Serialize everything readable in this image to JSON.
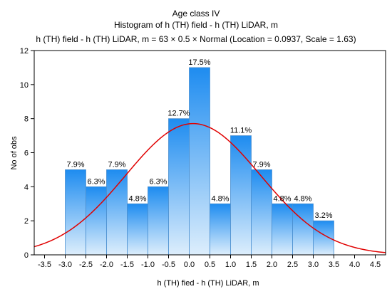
{
  "chart_data": {
    "type": "bar",
    "title": "Age class IV",
    "subtitle": "Histogram of h (TH) field - h (TH) LiDAR, m",
    "fit_label": "h (TH) field - h (TH) LiDAR, m = 63 × 0.5 × Normal (Location = 0.0937, Scale = 1.63)",
    "xlabel": "h (TH) fied - h (TH) LiDAR, m",
    "ylabel": "No of obs",
    "xlim": [
      -3.75,
      4.75
    ],
    "ylim": [
      0,
      12
    ],
    "x_ticks": [
      "-3.5",
      "-3.0",
      "-2.5",
      "-2.0",
      "-1.5",
      "-1.0",
      "-0.5",
      "0.0",
      "0.5",
      "1.0",
      "1.5",
      "2.0",
      "2.5",
      "3.0",
      "3.5",
      "4.0",
      "4.5"
    ],
    "y_ticks": [
      "0",
      "2",
      "4",
      "6",
      "8",
      "10",
      "12"
    ],
    "bins": [
      {
        "from": -3.0,
        "to": -2.5,
        "count": 5,
        "label": "7.9%"
      },
      {
        "from": -2.5,
        "to": -2.0,
        "count": 4,
        "label": "6.3%"
      },
      {
        "from": -2.0,
        "to": -1.5,
        "count": 5,
        "label": "7.9%"
      },
      {
        "from": -1.5,
        "to": -1.0,
        "count": 3,
        "label": "4.8%"
      },
      {
        "from": -1.0,
        "to": -0.5,
        "count": 4,
        "label": "6.3%"
      },
      {
        "from": -0.5,
        "to": 0.0,
        "count": 8,
        "label": "12.7%"
      },
      {
        "from": 0.0,
        "to": 0.5,
        "count": 11,
        "label": "17.5%"
      },
      {
        "from": 0.5,
        "to": 1.0,
        "count": 3,
        "label": "4.8%"
      },
      {
        "from": 1.0,
        "to": 1.5,
        "count": 7,
        "label": "11.1%"
      },
      {
        "from": 1.5,
        "to": 2.0,
        "count": 5,
        "label": "7.9%"
      },
      {
        "from": 2.0,
        "to": 2.5,
        "count": 3,
        "label": "4.8%"
      },
      {
        "from": 2.5,
        "to": 3.0,
        "count": 3,
        "label": "4.8%"
      },
      {
        "from": 3.0,
        "to": 3.5,
        "count": 2,
        "label": "3.2%"
      }
    ],
    "normal_fit": {
      "n": 63,
      "bin_width": 0.5,
      "location": 0.0937,
      "scale": 1.63
    },
    "grid": false,
    "colors": {
      "bar_top": "#1e8cf0",
      "bar_bottom": "#ddeefc",
      "bar_edge": "#4a8fd0",
      "curve": "#e00000"
    }
  }
}
